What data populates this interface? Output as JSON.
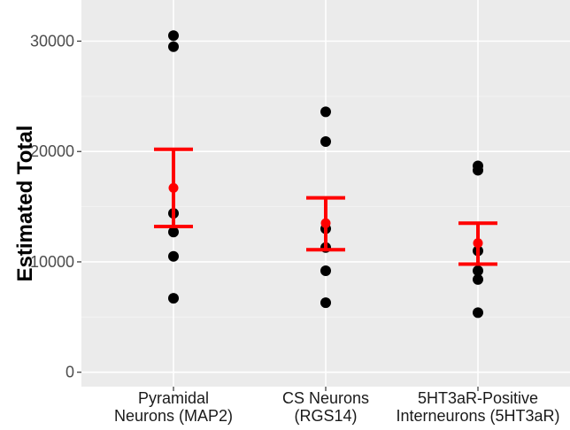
{
  "chart_data": {
    "type": "scatter",
    "title": "",
    "xlabel": "",
    "ylabel": "Estimated Total",
    "ylim": [
      -1000,
      33500
    ],
    "yticks": [
      0,
      10000,
      20000,
      30000
    ],
    "grid": true,
    "colors": {
      "panel": "#ebebeb",
      "grid_major": "#ffffff",
      "grid_minor": "#f5f5f5",
      "points": "#000000",
      "summary": "#ff0000"
    },
    "categories": [
      {
        "label_lines": [
          "Pyramidal",
          "Neurons (MAP2)"
        ]
      },
      {
        "label_lines": [
          "CS Neurons",
          "(RGS14)"
        ]
      },
      {
        "label_lines": [
          "5HT3aR-Positive",
          "Interneurons (5HT3aR)"
        ]
      }
    ],
    "points": [
      [
        30500,
        29500,
        14400,
        12700,
        10500,
        6700
      ],
      [
        23600,
        20900,
        13000,
        11300,
        9200,
        6300
      ],
      [
        18700,
        18300,
        11000,
        9200,
        8400,
        5400
      ]
    ],
    "mean": [
      16700,
      13500,
      11700
    ],
    "error_low": [
      13200,
      11100,
      9800
    ],
    "error_high": [
      20200,
      15800,
      13500
    ]
  }
}
